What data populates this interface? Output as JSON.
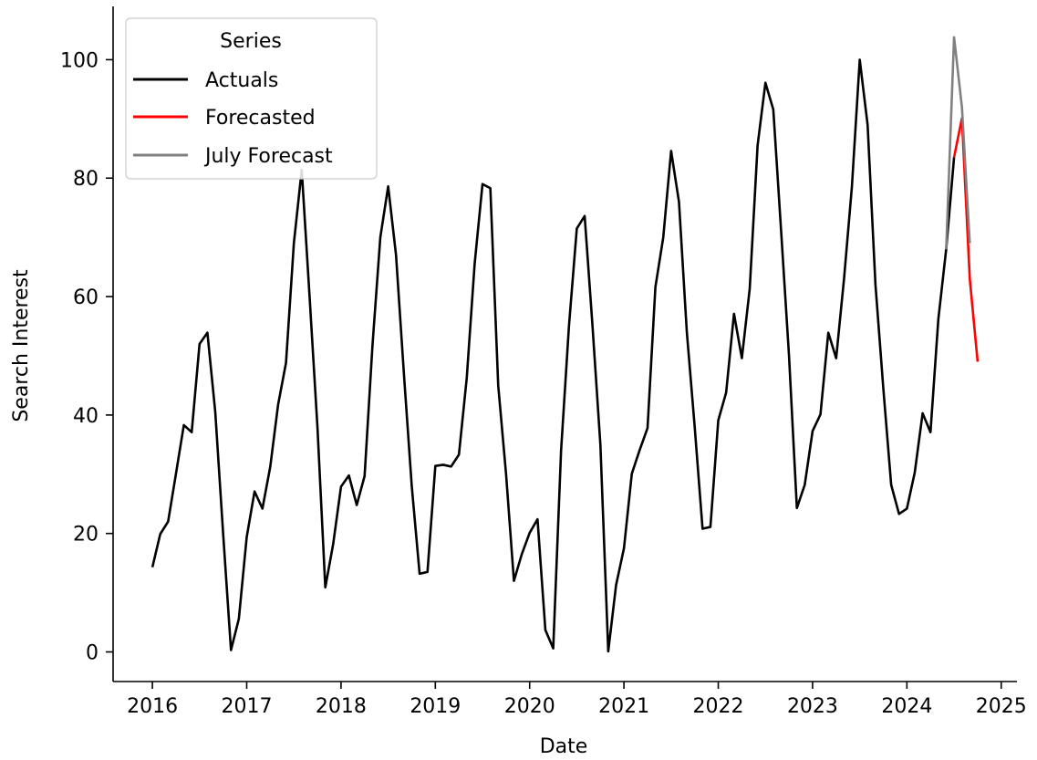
{
  "chart_data": {
    "type": "line",
    "xlabel": "Date",
    "ylabel": "Search Interest",
    "xlim": [
      "2015-08-01",
      "2025-03-01"
    ],
    "ylim": [
      -5,
      109
    ],
    "x_ticks": [
      "2016",
      "2017",
      "2018",
      "2019",
      "2020",
      "2021",
      "2022",
      "2023",
      "2024",
      "2025"
    ],
    "y_ticks": [
      0,
      20,
      40,
      60,
      80,
      100
    ],
    "legend": {
      "title": "Series",
      "position": "top-left"
    },
    "series": [
      {
        "name": "Actuals",
        "color": "#000000",
        "x": [
          "2016-01",
          "2016-02",
          "2016-03",
          "2016-04",
          "2016-05",
          "2016-06",
          "2016-07",
          "2016-08",
          "2016-09",
          "2016-10",
          "2016-11",
          "2016-12",
          "2017-01",
          "2017-02",
          "2017-03",
          "2017-04",
          "2017-05",
          "2017-06",
          "2017-07",
          "2017-08",
          "2017-09",
          "2017-10",
          "2017-11",
          "2017-12",
          "2018-01",
          "2018-02",
          "2018-03",
          "2018-04",
          "2018-05",
          "2018-06",
          "2018-07",
          "2018-08",
          "2018-09",
          "2018-10",
          "2018-11",
          "2018-12",
          "2019-01",
          "2019-02",
          "2019-03",
          "2019-04",
          "2019-05",
          "2019-06",
          "2019-07",
          "2019-08",
          "2019-09",
          "2019-10",
          "2019-11",
          "2019-12",
          "2020-01",
          "2020-02",
          "2020-03",
          "2020-04",
          "2020-05",
          "2020-06",
          "2020-07",
          "2020-08",
          "2020-09",
          "2020-10",
          "2020-11",
          "2020-12",
          "2021-01",
          "2021-02",
          "2021-03",
          "2021-04",
          "2021-05",
          "2021-06",
          "2021-07",
          "2021-08",
          "2021-09",
          "2021-10",
          "2021-11",
          "2021-12",
          "2022-01",
          "2022-02",
          "2022-03",
          "2022-04",
          "2022-05",
          "2022-06",
          "2022-07",
          "2022-08",
          "2022-09",
          "2022-10",
          "2022-11",
          "2022-12",
          "2023-01",
          "2023-02",
          "2023-03",
          "2023-04",
          "2023-05",
          "2023-06",
          "2023-07",
          "2023-08",
          "2023-09",
          "2023-10",
          "2023-11",
          "2023-12",
          "2024-01",
          "2024-02",
          "2024-03",
          "2024-04",
          "2024-05",
          "2024-06",
          "2024-07"
        ],
        "values": [
          14.3,
          19.9,
          22.0,
          30.1,
          38.3,
          37.1,
          52.0,
          53.9,
          40.5,
          20.0,
          0.3,
          5.6,
          19.4,
          27.1,
          24.2,
          31.3,
          41.8,
          48.8,
          69.0,
          81.4,
          60.0,
          38.0,
          10.9,
          18.2,
          27.9,
          29.8,
          24.8,
          29.7,
          51.7,
          70.0,
          78.6,
          67.0,
          47.0,
          28.0,
          13.2,
          13.5,
          31.4,
          31.6,
          31.3,
          33.3,
          46.3,
          65.5,
          79.0,
          78.3,
          45.0,
          30.0,
          12.0,
          16.5,
          20.1,
          22.4,
          3.7,
          0.6,
          34.0,
          55.0,
          71.5,
          73.6,
          55.0,
          35.0,
          0.1,
          11.3,
          17.5,
          30.1,
          34.1,
          37.8,
          61.6,
          70.0,
          84.6,
          76.0,
          54.0,
          38.0,
          20.8,
          21.1,
          39.1,
          43.8,
          57.1,
          49.6,
          61.3,
          85.5,
          96.1,
          91.6,
          71.0,
          50.0,
          24.3,
          28.2,
          37.3,
          40.1,
          53.9,
          49.6,
          63.0,
          78.5,
          100.0,
          89.0,
          62.0,
          44.5,
          28.2,
          23.3,
          24.2,
          30.3,
          40.3,
          37.1,
          56.2,
          68.0,
          83.5
        ]
      },
      {
        "name": "Forecasted",
        "color": "#ff0000",
        "x": [
          "2024-07",
          "2024-08",
          "2024-09",
          "2024-10"
        ],
        "values": [
          83.5,
          90.1,
          63.0,
          49.0
        ]
      },
      {
        "name": "July Forecast",
        "color": "#808080",
        "x": [
          "2024-06",
          "2024-07",
          "2024-08",
          "2024-09"
        ],
        "values": [
          68.0,
          103.8,
          92.0,
          69.0
        ]
      }
    ]
  }
}
